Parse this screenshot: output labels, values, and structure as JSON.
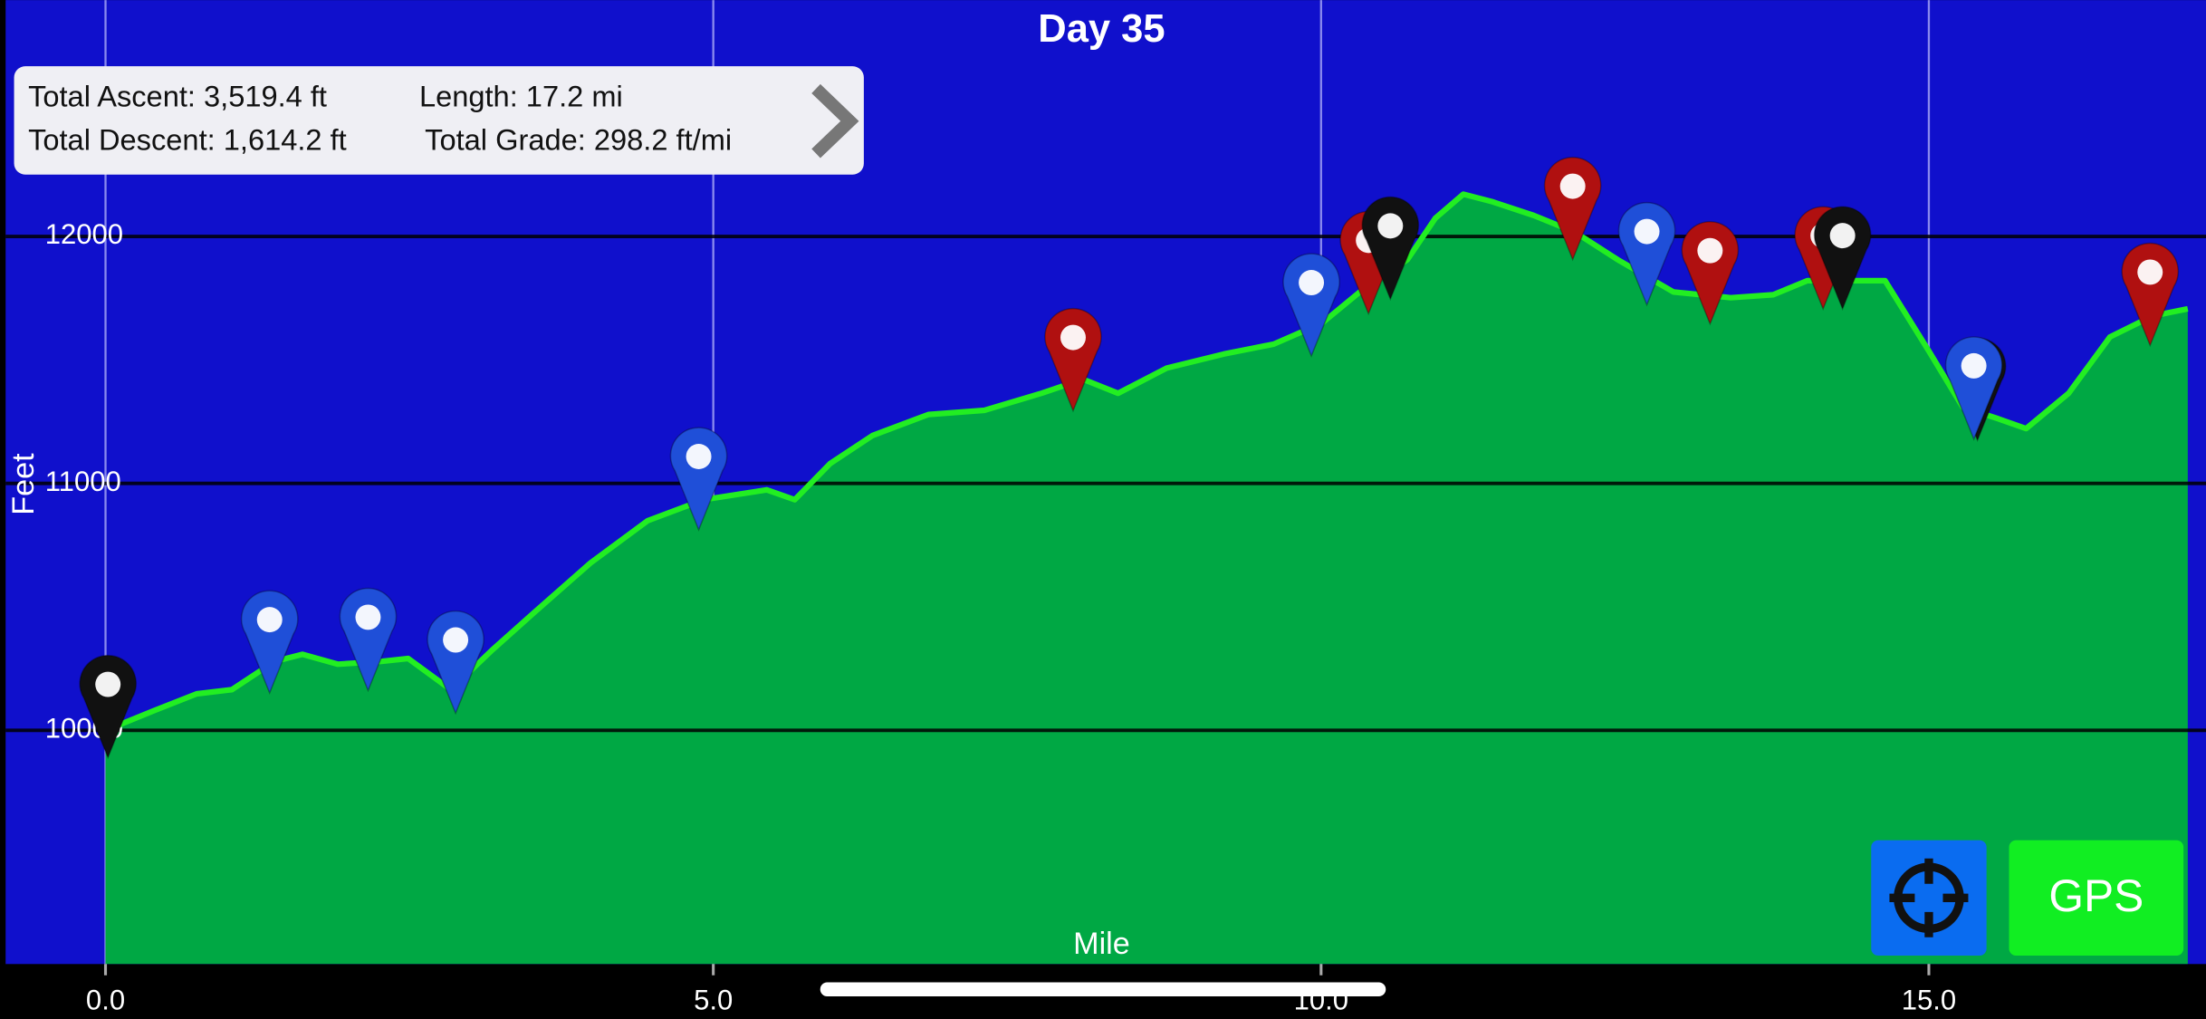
{
  "chart_data": {
    "type": "area",
    "title": "Day 35",
    "x_label": "Mile",
    "y_label": "Feet",
    "x": [
      0,
      0.4,
      0.75,
      1.04,
      1.39,
      1.62,
      1.91,
      2.26,
      2.49,
      2.84,
      3.18,
      3.53,
      3.99,
      4.46,
      4.92,
      5.44,
      5.67,
      5.96,
      6.31,
      6.77,
      7.23,
      7.7,
      8.04,
      8.33,
      8.73,
      9.2,
      9.61,
      10.01,
      10.36,
      10.71,
      10.94,
      11.17,
      11.4,
      11.75,
      12.09,
      12.44,
      12.9,
      13.37,
      13.72,
      14,
      14.64,
      15,
      15.28,
      15.57,
      15.8,
      16.15,
      16.49,
      16.84,
      17.13
    ],
    "values": [
      10000,
      10080,
      10148,
      10165,
      10279,
      10308,
      10268,
      10279,
      10291,
      10165,
      10325,
      10479,
      10678,
      10849,
      10934,
      10974,
      10934,
      11080,
      11194,
      11279,
      11296,
      11365,
      11422,
      11365,
      11467,
      11524,
      11564,
      11650,
      11792,
      11906,
      12074,
      12171,
      12142,
      12085,
      12017,
      11906,
      11775,
      11752,
      11764,
      11821,
      11821,
      11536,
      11308,
      11262,
      11222,
      11365,
      11593,
      11678,
      11707
    ],
    "color": "#00a844",
    "line_color": "#22ee22",
    "xlim": [
      0,
      17.28
    ],
    "ylim": [
      9054,
      12957
    ],
    "xticks": [
      {
        "value": 0,
        "label": "0.0"
      },
      {
        "value": 5,
        "label": "5.0"
      },
      {
        "value": 10,
        "label": "10.0"
      },
      {
        "value": 15,
        "label": "15.0"
      }
    ],
    "yticks": [
      10000,
      11000,
      12000
    ],
    "grid": true,
    "markers": [
      {
        "x": 0.02,
        "color": "#111111"
      },
      {
        "x": 1.35,
        "color": "#1f4fd8"
      },
      {
        "x": 2.16,
        "color": "#1f4fd8"
      },
      {
        "x": 2.88,
        "color": "#1f4fd8"
      },
      {
        "x": 4.88,
        "color": "#1f4fd8"
      },
      {
        "x": 7.96,
        "color": "#b01010"
      },
      {
        "x": 9.92,
        "color": "#1f4fd8"
      },
      {
        "x": 10.39,
        "color": "#b01010"
      },
      {
        "x": 10.57,
        "color": "#111111"
      },
      {
        "x": 12.07,
        "color": "#b01010"
      },
      {
        "x": 12.68,
        "color": "#1f4fd8"
      },
      {
        "x": 13.2,
        "color": "#b01010"
      },
      {
        "x": 14.13,
        "color": "#b01010"
      },
      {
        "x": 14.29,
        "color": "#111111"
      },
      {
        "x": 15.4,
        "color": "#111111"
      },
      {
        "x": 15.37,
        "color": "#1f4fd8"
      },
      {
        "x": 16.82,
        "color": "#b01010"
      }
    ]
  },
  "stats": [
    "Total Ascent: 3,519.4 ft",
    "Length: 17.2 mi",
    "Total Descent: 1,614.2 ft",
    "Total Grade: 298.2 ft/mi"
  ],
  "gps_button": "GPS"
}
